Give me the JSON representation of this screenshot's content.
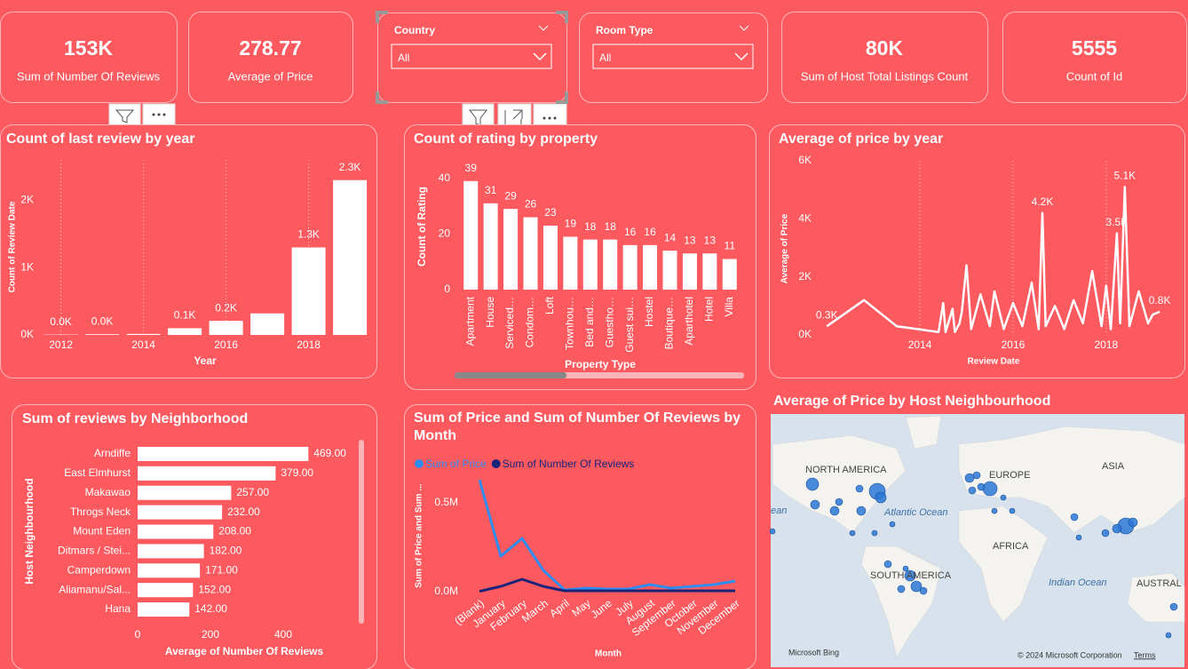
{
  "cards": [
    {
      "value": "153K",
      "label": "Sum of Number Of Reviews"
    },
    {
      "value": "278.77",
      "label": "Average of Price"
    },
    {
      "value": "80K",
      "label": "Sum of Host Total Listings Count"
    },
    {
      "value": "5555",
      "label": "Count of Id"
    }
  ],
  "slicers": [
    {
      "title": "Country",
      "selection": "All"
    },
    {
      "title": "Room Type",
      "selection": "All"
    }
  ],
  "chart_data": [
    {
      "type": "bar",
      "title": "Count of last review by year",
      "x_label": "Year",
      "y_label": "Count of Review Date",
      "x": [
        2012,
        2013,
        2014,
        2015,
        2016,
        2017,
        2018,
        2019
      ],
      "values": [
        5,
        10,
        15,
        100,
        210,
        320,
        1300,
        2300
      ],
      "value_labels": [
        "0.0K",
        "0.0K",
        null,
        "0.1K",
        "0.2K",
        null,
        "1.3K",
        "2.3K"
      ],
      "color": "#ffffff",
      "xlim": [
        2011.6,
        2019.6
      ],
      "xticks": [
        2012,
        2014,
        2016,
        2018
      ],
      "ylim": [
        0,
        2600
      ],
      "yticks": [
        {
          "value": 0,
          "label": "0K"
        },
        {
          "value": 1000,
          "label": "1K"
        },
        {
          "value": 2000,
          "label": "2K"
        }
      ],
      "grid": "x"
    },
    {
      "type": "bar",
      "title": "Count of rating by property",
      "x_label": "Property Type",
      "y_label": "Count of Rating",
      "categories": [
        "Apartment",
        "House",
        "Serviced…",
        "Condom…",
        "Loft",
        "Townhou…",
        "Bed and…",
        "Guestho…",
        "Guest sui…",
        "Hostel",
        "Boutique…",
        "Aparthotel",
        "Hotel",
        "Villa"
      ],
      "values": [
        39,
        31,
        29,
        26,
        23,
        19,
        18,
        18,
        16,
        16,
        14,
        13,
        13,
        11
      ],
      "color": "#ffffff",
      "ylim": [
        0,
        45
      ],
      "yticks": [
        0,
        20,
        40
      ],
      "grid": false
    },
    {
      "type": "line",
      "title": "Average of price by year",
      "x_label": "Review Date",
      "y_label": "Average of Price",
      "x": [
        2012.0,
        2012.8,
        2013.5,
        2014.4,
        2014.5,
        2014.55,
        2014.7,
        2014.75,
        2014.85,
        2014.9,
        2015.0,
        2015.1,
        2015.3,
        2015.5,
        2015.6,
        2015.8,
        2016.0,
        2016.2,
        2016.4,
        2016.55,
        2016.63,
        2016.7,
        2016.9,
        2017.1,
        2017.3,
        2017.5,
        2017.7,
        2017.9,
        2018.0,
        2018.1,
        2018.23,
        2018.3,
        2018.4,
        2018.5,
        2018.7,
        2018.9,
        2019.0,
        2019.15
      ],
      "values": [
        300,
        1200,
        300,
        100,
        1100,
        100,
        900,
        100,
        400,
        800,
        2400,
        200,
        1400,
        300,
        1500,
        200,
        1100,
        300,
        1800,
        200,
        4200,
        300,
        1000,
        200,
        1200,
        400,
        2200,
        300,
        1700,
        200,
        3500,
        400,
        5100,
        300,
        1500,
        400,
        700,
        800
      ],
      "value_labels": [
        "0.3K",
        null,
        null,
        null,
        null,
        null,
        null,
        null,
        null,
        null,
        null,
        null,
        null,
        null,
        null,
        null,
        null,
        null,
        null,
        null,
        "4.2K",
        null,
        null,
        null,
        null,
        null,
        null,
        null,
        null,
        null,
        "3.5K",
        null,
        "5.1K",
        null,
        null,
        null,
        null,
        "0.8K"
      ],
      "color": "#ffffff",
      "xlim": [
        2011.9,
        2019.3
      ],
      "xticks": [
        2014,
        2016,
        2018
      ],
      "ylim": [
        0,
        6000
      ],
      "yticks": [
        {
          "value": 0,
          "label": "0K"
        },
        {
          "value": 2000,
          "label": "2K"
        },
        {
          "value": 4000,
          "label": "4K"
        },
        {
          "value": 6000,
          "label": "6K"
        }
      ],
      "grid": "x"
    },
    {
      "type": "bar",
      "orientation": "horizontal",
      "title": "Sum of reviews by Neighborhood",
      "x_label": "Average of Number Of Reviews",
      "y_label": "Host Neighbourhood",
      "categories": [
        "Arndiffe",
        "East Elmhurst",
        "Makawao",
        "Throgs Neck",
        "Mount Eden",
        "Ditmars / Stei...",
        "Camperdown",
        "Aliamanu/Sal...",
        "Hana"
      ],
      "values": [
        469,
        379,
        257,
        232,
        208,
        182,
        171,
        152,
        142
      ],
      "value_labels": [
        "469.00",
        "379.00",
        "257.00",
        "232.00",
        "208.00",
        "182.00",
        "171.00",
        "152.00",
        "142.00"
      ],
      "color": "#ffffff",
      "xlim": [
        0,
        600
      ],
      "xticks": [
        0,
        200,
        400
      ],
      "grid": false
    },
    {
      "type": "line",
      "title": "Sum of Price and Sum of Number Of Reviews by Month",
      "x_label": "Month",
      "y_label": "Sum of Price and Sum ...",
      "categories": [
        "(Blank)",
        "January",
        "February",
        "March",
        "April",
        "May",
        "June",
        "July",
        "August",
        "September",
        "October",
        "November",
        "December"
      ],
      "series": [
        {
          "name": "Sum of Price",
          "color": "#2f8cf0",
          "values": [
            630000,
            200000,
            300000,
            120000,
            10000,
            20000,
            15000,
            15000,
            40000,
            20000,
            30000,
            40000,
            60000
          ]
        },
        {
          "name": "Sum of Number Of Reviews",
          "color": "#17247a",
          "values": [
            2000,
            30000,
            70000,
            30000,
            5000,
            5000,
            5000,
            5000,
            5000,
            5000,
            5000,
            5000,
            5000
          ]
        }
      ],
      "ylim": [
        0,
        650000
      ],
      "yticks": [
        {
          "value": 0,
          "label": "0.0M"
        },
        {
          "value": 500000,
          "label": "0.5M"
        }
      ],
      "grid": false
    }
  ],
  "map": {
    "title": "Average of Price by Host Neighbourhood",
    "labels": [
      "NORTH AMERICA",
      "EUROPE",
      "ASIA",
      "AFRICA",
      "SOUTH AMERICA",
      "AUSTRAL",
      "Atlantic Ocean",
      "Indian Ocean",
      "ean"
    ],
    "attribution": "Microsoft Bing",
    "copyright": "© 2024 Microsoft Corporation",
    "terms": "Terms"
  }
}
